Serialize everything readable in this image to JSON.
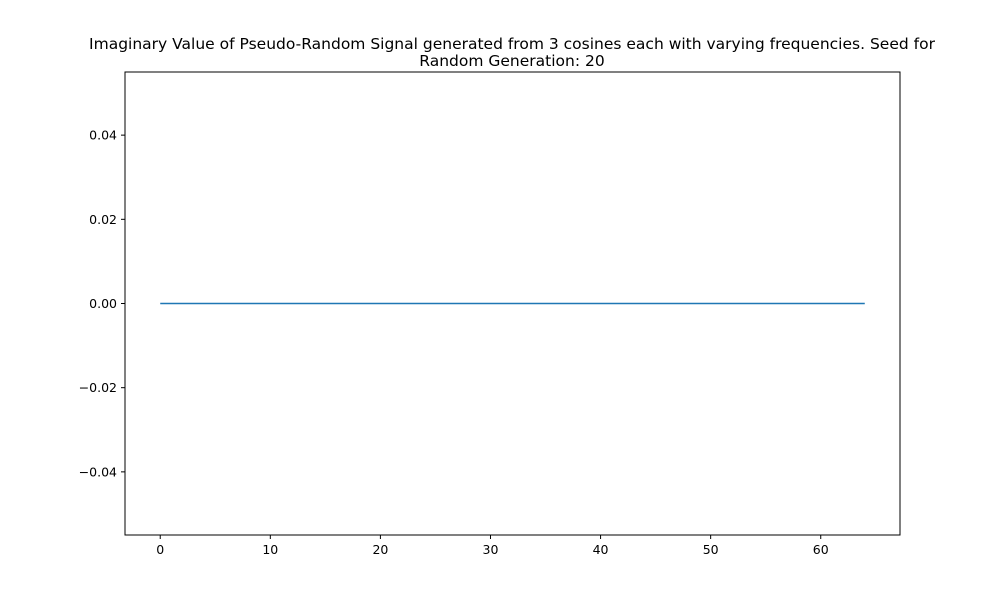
{
  "chart_data": {
    "type": "line",
    "title_lines": [
      "Imaginary Value of Pseudo-Random Signal generated from 3 cosines each with varying frequencies. Seed for",
      "Random Generation: 20"
    ],
    "xlabel": "",
    "ylabel": "",
    "xlim": [
      -3.2,
      67.2
    ],
    "ylim": [
      -0.055,
      0.055
    ],
    "x_ticks": [
      0,
      10,
      20,
      30,
      40,
      50,
      60
    ],
    "x_tick_labels": [
      "0",
      "10",
      "20",
      "30",
      "40",
      "50",
      "60"
    ],
    "y_ticks": [
      -0.04,
      -0.02,
      0.0,
      0.02,
      0.04
    ],
    "y_tick_labels": [
      "−0.04",
      "−0.02",
      "0.00",
      "0.02",
      "0.04"
    ],
    "grid": false,
    "series": [
      {
        "color": "#1f77b4",
        "x": [
          0,
          64
        ],
        "y": [
          0,
          0
        ]
      }
    ]
  }
}
